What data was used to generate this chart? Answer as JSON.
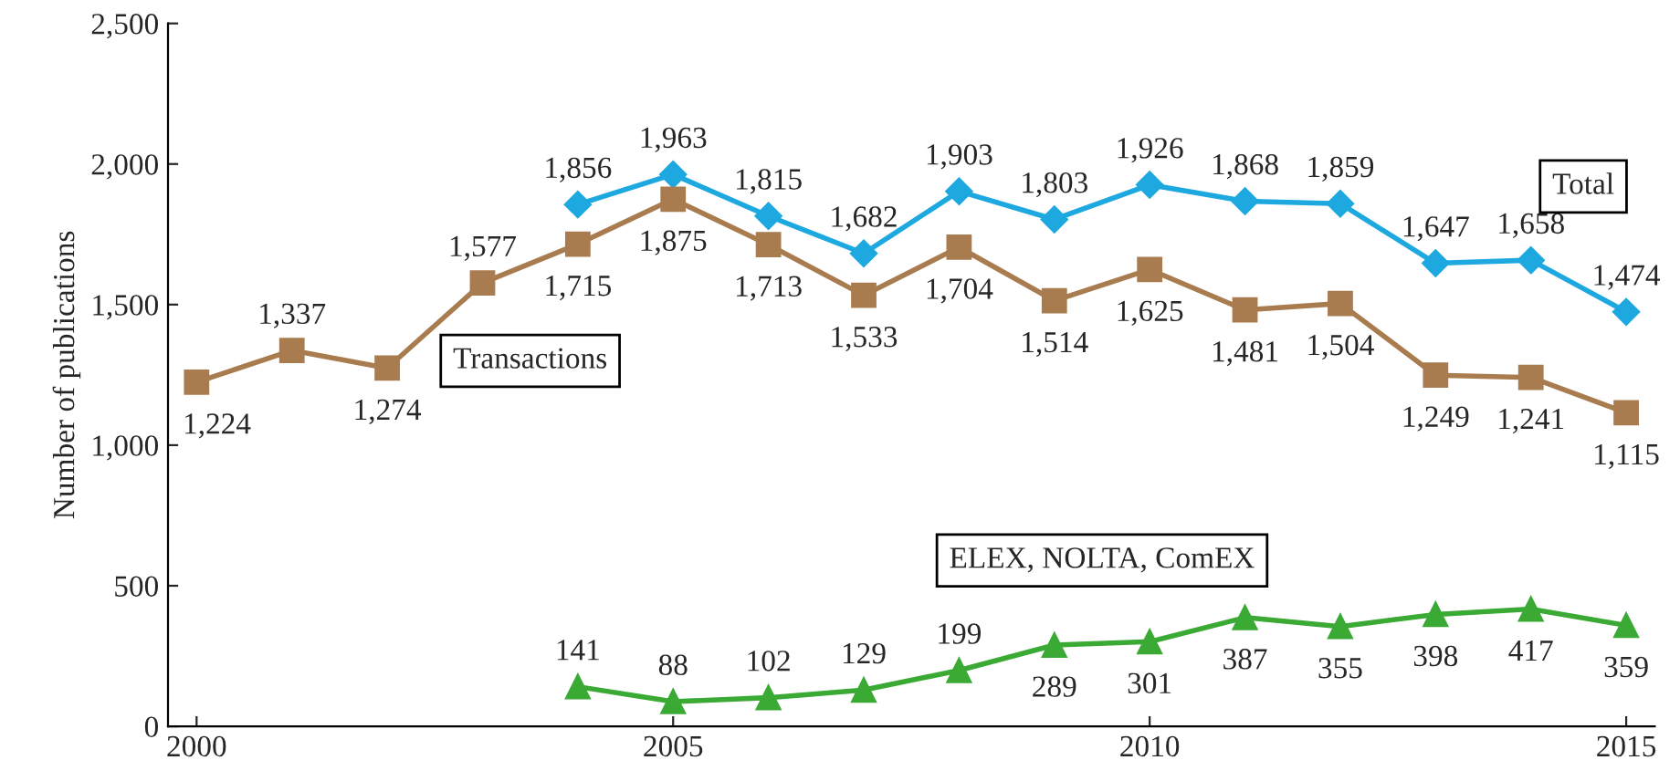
{
  "chart_data": {
    "type": "line",
    "ylabel": "Number of publications",
    "x": [
      2000,
      2001,
      2002,
      2003,
      2004,
      2005,
      2006,
      2007,
      2008,
      2009,
      2010,
      2011,
      2012,
      2013,
      2014,
      2015
    ],
    "xlim": [
      1999.7,
      2015.3
    ],
    "xticks": [
      2000,
      2005,
      2010,
      2015
    ],
    "ylim": [
      0,
      2500
    ],
    "yticks": [
      {
        "value": 0,
        "label": "0"
      },
      {
        "value": 500,
        "label": "500"
      },
      {
        "value": 1000,
        "label": "1,000"
      },
      {
        "value": 1500,
        "label": "1,500"
      },
      {
        "value": 2000,
        "label": "2,000"
      },
      {
        "value": 2500,
        "label": "2,500"
      }
    ],
    "grid": false,
    "legend": false,
    "series": [
      {
        "name": "Total",
        "color": "#1ea8e0",
        "marker": "diamond",
        "values": [
          null,
          null,
          null,
          null,
          1856,
          1963,
          1815,
          1682,
          1903,
          1803,
          1926,
          1868,
          1859,
          1647,
          1658,
          1474
        ],
        "value_labels": [
          null,
          null,
          null,
          null,
          "1,856",
          "1,963",
          "1,815",
          "1,682",
          "1,903",
          "1,803",
          "1,926",
          "1,868",
          "1,859",
          "1,647",
          "1,658",
          "1,474"
        ]
      },
      {
        "name": "Transactions",
        "color": "#a97c50",
        "marker": "square",
        "values": [
          1224,
          1337,
          1274,
          1577,
          1715,
          1875,
          1713,
          1533,
          1704,
          1514,
          1625,
          1481,
          1504,
          1249,
          1241,
          1115
        ],
        "value_labels": [
          "1,224",
          "1,337",
          "1,274",
          "1,577",
          "1,715",
          "1,875",
          "1,713",
          "1,533",
          "1,704",
          "1,514",
          "1,625",
          "1,481",
          "1,504",
          "1,249",
          "1,241",
          "1,115"
        ]
      },
      {
        "name": "ELEX, NOLTA, ComEX",
        "color": "#3aaa35",
        "marker": "triangle",
        "values": [
          null,
          null,
          null,
          null,
          141,
          88,
          102,
          129,
          199,
          289,
          301,
          387,
          355,
          398,
          417,
          359
        ],
        "value_labels": [
          null,
          null,
          null,
          null,
          "141",
          "88",
          "102",
          "129",
          "199",
          "289",
          "301",
          "387",
          "355",
          "398",
          "417",
          "359"
        ]
      }
    ]
  }
}
